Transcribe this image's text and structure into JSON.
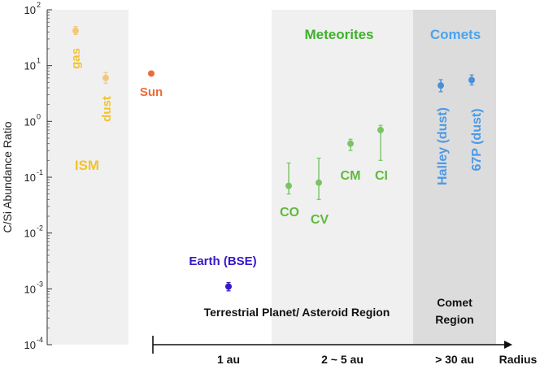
{
  "chart_data": {
    "type": "scatter",
    "title": "",
    "ylabel": "C/Si Abundance Ratio",
    "xlabel": "Radius",
    "yscale": "log",
    "ylim": [
      0.0001,
      100
    ],
    "y_ticks": [
      {
        "exp": "2",
        "value": 100
      },
      {
        "exp": "1",
        "value": 10
      },
      {
        "exp": "0",
        "value": 1
      },
      {
        "exp": "-1",
        "value": 0.1
      },
      {
        "exp": "-2",
        "value": 0.01
      },
      {
        "exp": "-3",
        "value": 0.001
      },
      {
        "exp": "-4",
        "value": 0.0001
      }
    ],
    "y_tick_base": "10",
    "x_ticks": [
      "1 au",
      "2 ~ 5 au",
      "> 30 au"
    ],
    "regions": [
      {
        "id": "ism",
        "label": "ISM",
        "color": "#f0f0f0"
      },
      {
        "id": "meteorites",
        "label": "Meteorites",
        "color": "#f0f0f0"
      },
      {
        "id": "comets",
        "label": "Comets",
        "color": "#dcdcdc"
      }
    ],
    "region_notes": [
      "Terrestrial Planet/ Asteroid Region",
      "Comet Region"
    ],
    "series": [
      {
        "name": "gas",
        "group": "ISM",
        "color": "#f2c879",
        "value": 42,
        "err_low": 36,
        "err_high": 50
      },
      {
        "name": "dust",
        "group": "ISM",
        "color": "#f2c879",
        "value": 6,
        "err_low": 4.8,
        "err_high": 7.5
      },
      {
        "name": "Sun",
        "group": "Sun",
        "color": "#ee6a3c",
        "value": 7.2,
        "err_low": 6.7,
        "err_high": 7.8
      },
      {
        "name": "Earth (BSE)",
        "group": "Earth",
        "color": "#3a17c6",
        "value": 0.0011,
        "err_low": 0.00092,
        "err_high": 0.0013
      },
      {
        "name": "CO",
        "group": "Meteorites",
        "color": "#7ac466",
        "value": 0.07,
        "err_low": 0.05,
        "err_high": 0.18
      },
      {
        "name": "CV",
        "group": "Meteorites",
        "color": "#7ac466",
        "value": 0.08,
        "err_low": 0.04,
        "err_high": 0.22
      },
      {
        "name": "CM",
        "group": "Meteorites",
        "color": "#7ac466",
        "value": 0.4,
        "err_low": 0.3,
        "err_high": 0.48
      },
      {
        "name": "CI",
        "group": "Meteorites",
        "color": "#7ac466",
        "value": 0.7,
        "err_low": 0.2,
        "err_high": 0.85
      },
      {
        "name": "Halley (dust)",
        "group": "Comets",
        "color": "#4a8fd9",
        "value": 4.4,
        "err_low": 3.4,
        "err_high": 5.6
      },
      {
        "name": "67P (dust)",
        "group": "Comets",
        "color": "#4a8fd9",
        "value": 5.5,
        "err_low": 4.5,
        "err_high": 6.8
      }
    ],
    "colors": {
      "ism_label": "#f2c330",
      "meteorites_label": "#3fb02b",
      "comets_label": "#4aa3f0",
      "sun_label": "#ef6a35",
      "earth_label": "#3a17c6",
      "meteorite_point_label": "#5fba3c",
      "comet_point_label": "#4a9ae8"
    }
  }
}
